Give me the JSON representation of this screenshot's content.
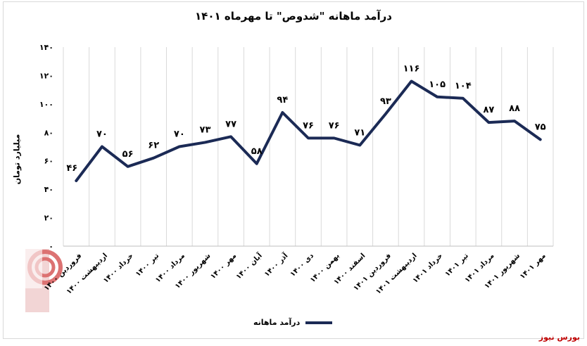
{
  "chart_data": {
    "type": "line",
    "title": "درآمد ماهانه \"شدوص\" تا مهرماه ۱۴۰۱",
    "ylabel": "میلیارد تومان",
    "xlabel": "",
    "ylim": [
      0,
      140
    ],
    "yticks": [
      "۰",
      "۲۰",
      "۴۰",
      "۶۰",
      "۸۰",
      "۱۰۰",
      "۱۲۰",
      "۱۴۰"
    ],
    "ytick_values": [
      0,
      20,
      40,
      60,
      80,
      100,
      120,
      140
    ],
    "categories": [
      "فروردین ۱۴۰۰",
      "اردیبهشت ۱۴۰۰",
      "خرداد ۱۴۰۰",
      "تیر ۱۴۰۰",
      "مرداد ۱۴۰۰",
      "شهریور ۱۴۰۰",
      "مهر ۱۴۰۰",
      "آبان ۱۴۰۰",
      "آذر ۱۴۰۰",
      "دی ۱۴۰۰",
      "بهمن ۱۴۰۰",
      "اسفند ۱۴۰۰",
      "فروردین ۱۴۰۱",
      "اردیبهشت ۱۴۰۱",
      "خرداد ۱۴۰۱",
      "تیر ۱۴۰۱",
      "مرداد ۱۴۰۱",
      "شهریور ۱۴۰۱",
      "مهر ۱۴۰۱"
    ],
    "series": [
      {
        "name": "درآمد ماهانه",
        "values": [
          46,
          70,
          56,
          62,
          70,
          73,
          77,
          58,
          94,
          76,
          76,
          71,
          93,
          116,
          105,
          104,
          87,
          88,
          75
        ],
        "labels": [
          "۴۶",
          "۷۰",
          "۵۶",
          "۶۲",
          "۷۰",
          "۷۳",
          "۷۷",
          "۵۸",
          "۹۴",
          "۷۶",
          "۷۶",
          "۷۱",
          "۹۳",
          "۱۱۶",
          "۱۰۵",
          "۱۰۴",
          "۸۷",
          "۸۸",
          "۷۵"
        ],
        "color": "#1b2a55"
      }
    ],
    "grid": "vertical",
    "legend": "bottom"
  },
  "branding": {
    "text": "بورس نیوز",
    "watermark": "بورس نیوز",
    "color": "#c00000"
  }
}
